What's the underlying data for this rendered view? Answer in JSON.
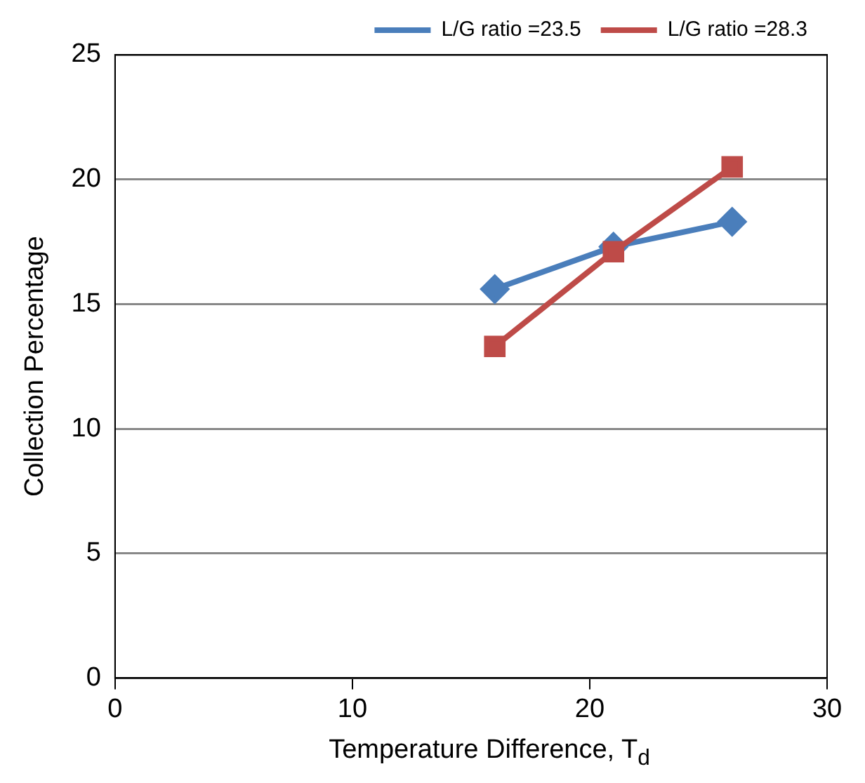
{
  "chart_data": {
    "type": "line",
    "xlabel": "Temperature Difference, T$_{d}$",
    "ylabel": "Collection Percentage",
    "xlim": [
      0,
      30
    ],
    "xticks": [
      0,
      10,
      20,
      30
    ],
    "ylim": [
      0,
      25
    ],
    "yticks": [
      0,
      5,
      10,
      15,
      20,
      25
    ],
    "grid": "y",
    "legend": "top right",
    "line_style": "solid",
    "series": [
      {
        "name": "L/G ratio =23.5",
        "color": "#4a7ebb",
        "marker": "diamond",
        "x": [
          16,
          21,
          26
        ],
        "values": [
          15.6,
          17.3,
          18.3
        ]
      },
      {
        "name": "L/G ratio =28.3",
        "color": "#be4b48",
        "marker": "square",
        "x": [
          16,
          21,
          26
        ],
        "values": [
          13.3,
          17.1,
          20.5
        ]
      }
    ]
  }
}
